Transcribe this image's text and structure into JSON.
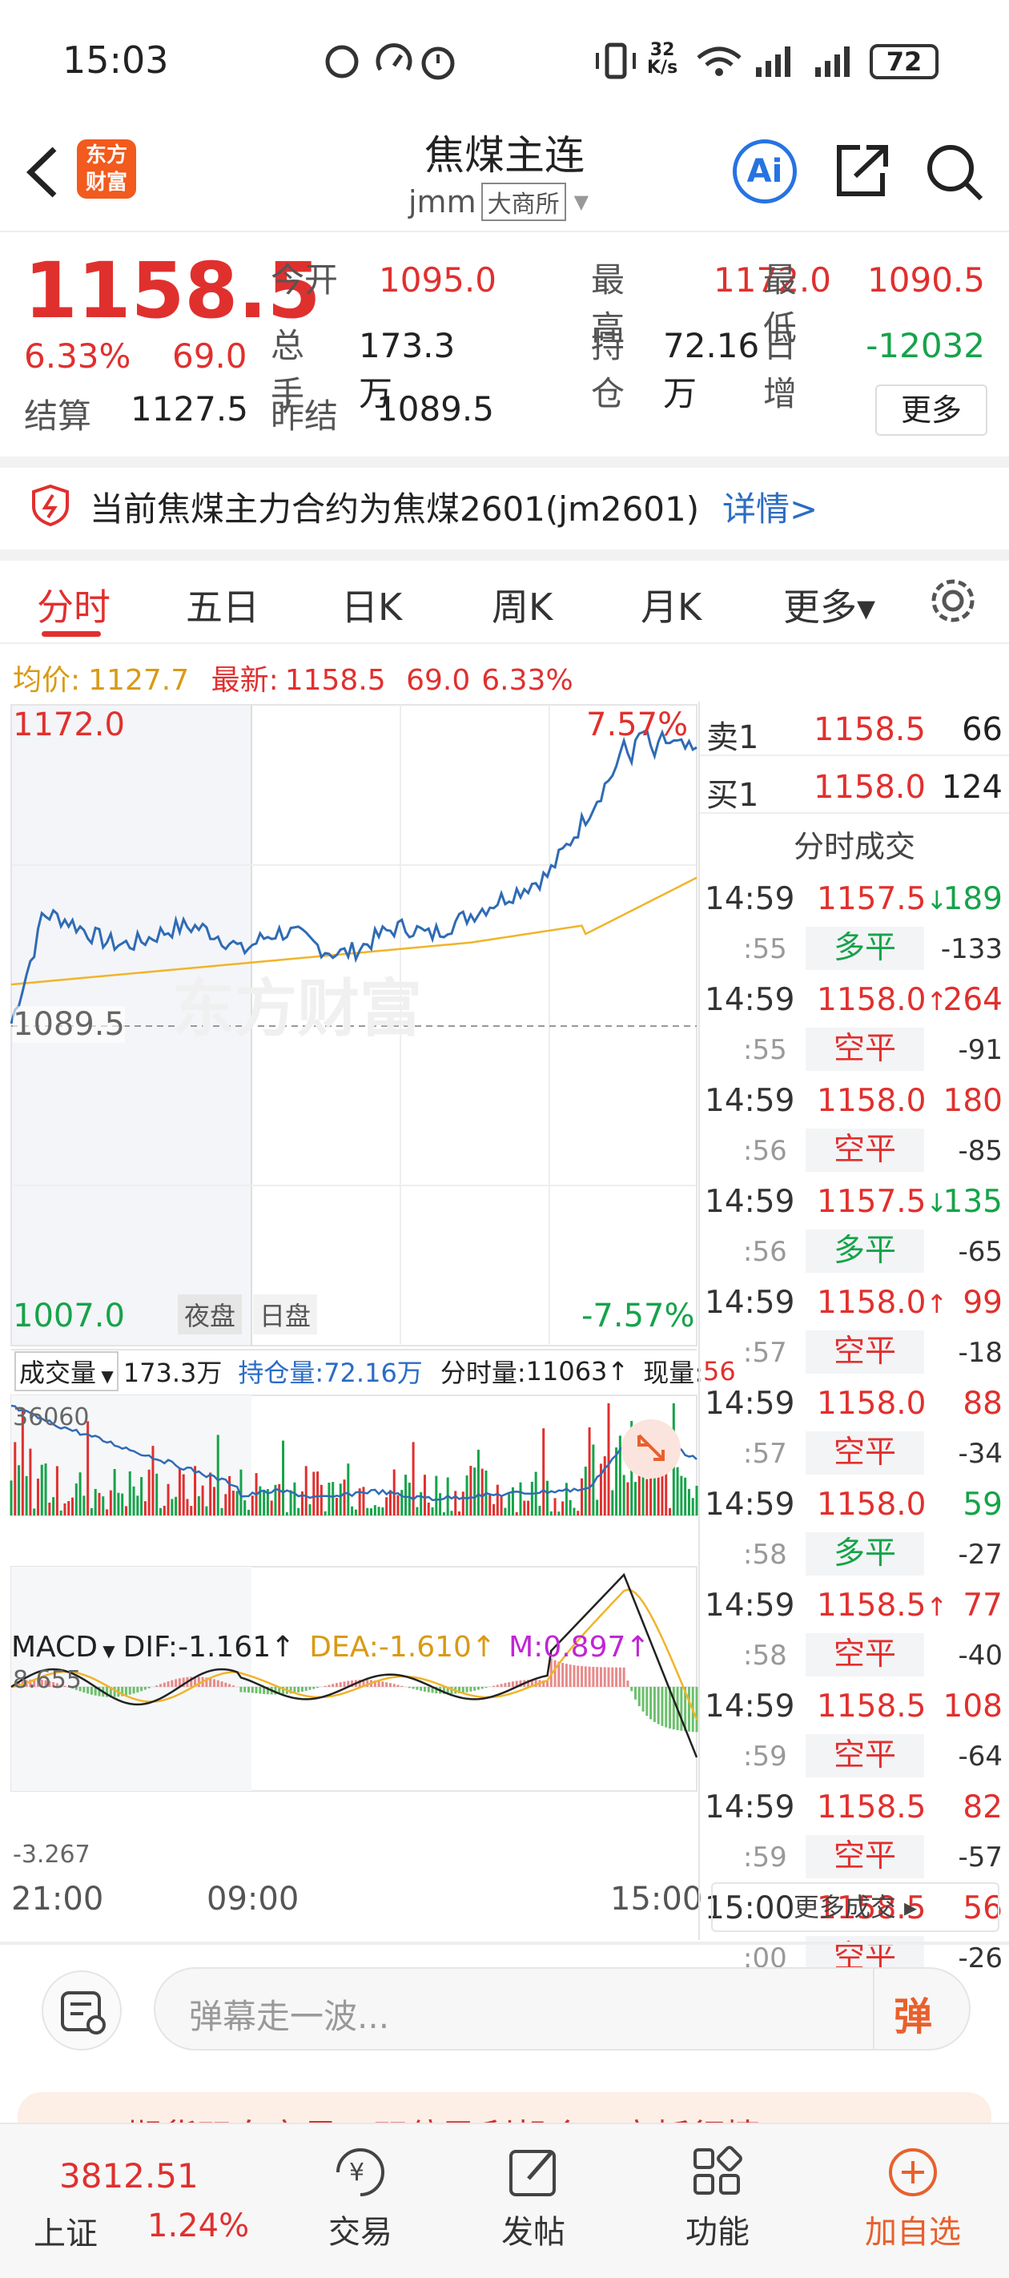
{
  "status": {
    "time": "15:03",
    "speed_top": "32",
    "speed_bottom": "K/s",
    "battery": "72"
  },
  "header": {
    "title": "焦煤主连",
    "code": "jmm",
    "exchange": "大商所",
    "logo_l1": "东方",
    "logo_l2": "财富",
    "ai": "Ai"
  },
  "quote": {
    "price": "1158.5",
    "pct": "6.33%",
    "change": "69.0",
    "open_label": "今开",
    "open": "1095.0",
    "high_label": "最高",
    "high": "1172.0",
    "low_label": "最低",
    "low": "1090.5",
    "vol_label": "总手",
    "vol": "173.3万",
    "oi_label": "持仓",
    "oi": "72.16万",
    "oi_chg_label": "日增",
    "oi_chg": "-12032",
    "settle_label": "结算",
    "settle": "1127.5",
    "prev_label": "昨结",
    "prev": "1089.5",
    "more": "更多"
  },
  "notice": {
    "text": "当前焦煤主力合约为焦煤2601(jm2601)",
    "link": "详情>"
  },
  "tabs": [
    "分时",
    "五日",
    "日K",
    "周K",
    "月K",
    "更多▾"
  ],
  "chart_bar": {
    "avg_label": "均价:",
    "avg": "1127.7",
    "last_label": "最新:",
    "last": "1158.5",
    "chg": "69.0",
    "pct": "6.33%"
  },
  "price_chart": {
    "high": "1172.0",
    "low": "1007.0",
    "high_pct": "7.57%",
    "low_pct": "-7.57%",
    "base": "1089.5",
    "night": "夜盘",
    "day": "日盘",
    "watermark": "东方财富"
  },
  "vol_bar": {
    "label": "成交量",
    "vol": "173.3万",
    "oi_label": "持仓量:",
    "oi": "72.16万",
    "tick_label": "分时量:",
    "tick": "11063",
    "now_label": "现量:",
    "now": "56",
    "max": "36060"
  },
  "macd_bar": {
    "label": "MACD",
    "dif_label": "DIF:",
    "dif": "-1.161",
    "dea_label": "DEA:",
    "dea": "-1.610",
    "m_label": "M:",
    "m": "0.897",
    "max": "8.655",
    "min": "-3.267"
  },
  "time_axis": [
    "21:00",
    "09:00",
    "15:00"
  ],
  "orderbook": [
    {
      "label": "卖1",
      "price": "1158.5",
      "qty": "66"
    },
    {
      "label": "买1",
      "price": "1158.0",
      "qty": "124"
    }
  ],
  "trades_title": "分时成交",
  "trades": [
    {
      "time": "14:59",
      "price": "1157.5",
      "arrow": "↓",
      "vol": "189",
      "sec": ":55",
      "kind": "多平",
      "oi": "-133",
      "pc": "red",
      "ac": "green",
      "vc": "green",
      "kc": "green"
    },
    {
      "time": "14:59",
      "price": "1158.0",
      "arrow": "↑",
      "vol": "264",
      "sec": ":55",
      "kind": "空平",
      "oi": "-91",
      "pc": "red",
      "ac": "red",
      "vc": "red",
      "kc": "red"
    },
    {
      "time": "14:59",
      "price": "1158.0",
      "arrow": "",
      "vol": "180",
      "sec": ":56",
      "kind": "空平",
      "oi": "-85",
      "pc": "red",
      "ac": "red",
      "vc": "red",
      "kc": "red"
    },
    {
      "time": "14:59",
      "price": "1157.5",
      "arrow": "↓",
      "vol": "135",
      "sec": ":56",
      "kind": "多平",
      "oi": "-65",
      "pc": "red",
      "ac": "green",
      "vc": "green",
      "kc": "green"
    },
    {
      "time": "14:59",
      "price": "1158.0",
      "arrow": "↑",
      "vol": "99",
      "sec": ":57",
      "kind": "空平",
      "oi": "-18",
      "pc": "red",
      "ac": "red",
      "vc": "red",
      "kc": "red"
    },
    {
      "time": "14:59",
      "price": "1158.0",
      "arrow": "",
      "vol": "88",
      "sec": ":57",
      "kind": "空平",
      "oi": "-34",
      "pc": "red",
      "ac": "red",
      "vc": "red",
      "kc": "red"
    },
    {
      "time": "14:59",
      "price": "1158.0",
      "arrow": "",
      "vol": "59",
      "sec": ":58",
      "kind": "多平",
      "oi": "-27",
      "pc": "red",
      "ac": "red",
      "vc": "green",
      "kc": "green"
    },
    {
      "time": "14:59",
      "price": "1158.5",
      "arrow": "↑",
      "vol": "77",
      "sec": ":58",
      "kind": "空平",
      "oi": "-40",
      "pc": "red",
      "ac": "red",
      "vc": "red",
      "kc": "red"
    },
    {
      "time": "14:59",
      "price": "1158.5",
      "arrow": "",
      "vol": "108",
      "sec": ":59",
      "kind": "空平",
      "oi": "-64",
      "pc": "red",
      "ac": "red",
      "vc": "red",
      "kc": "red"
    },
    {
      "time": "14:59",
      "price": "1158.5",
      "arrow": "",
      "vol": "82",
      "sec": ":59",
      "kind": "空平",
      "oi": "-57",
      "pc": "red",
      "ac": "red",
      "vc": "red",
      "kc": "red"
    },
    {
      "time": "15:00",
      "price": "1158.5",
      "arrow": "",
      "vol": "56",
      "sec": ":00",
      "kind": "空平",
      "oi": "-26",
      "pc": "red",
      "ac": "red",
      "vc": "red",
      "kc": "red"
    }
  ],
  "more_trades": "更多成交 ▸",
  "danmaku": {
    "placeholder": "弹幕走一波...",
    "btn": "弹"
  },
  "banner": "期货双向交易，双倍盈利机会，立抓行情",
  "bottom": {
    "index": "3812.51",
    "index_name": "上证",
    "index_pct": "1.24%",
    "items": [
      "交易",
      "发帖",
      "功能",
      "加自选"
    ]
  }
}
